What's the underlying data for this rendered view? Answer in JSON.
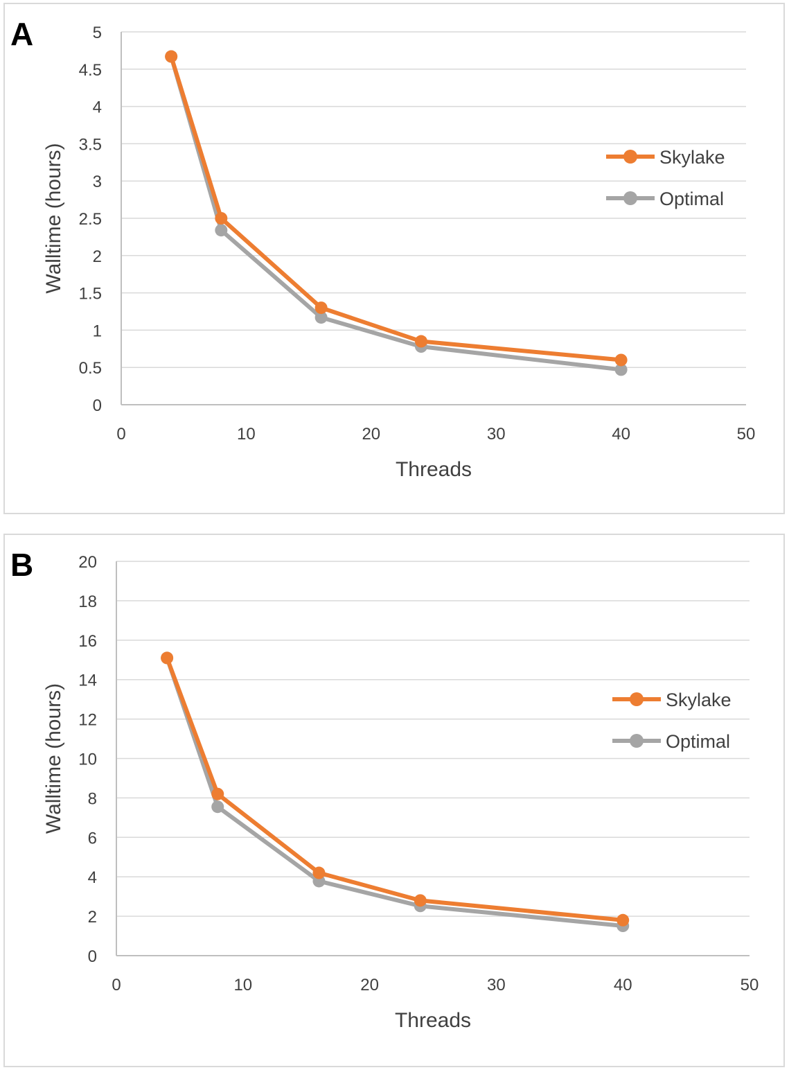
{
  "chart_data": [
    {
      "panel_label": "A",
      "type": "line",
      "xlabel": "Threads",
      "ylabel": "Walltime (hours)",
      "xlim": [
        0,
        50
      ],
      "ylim": [
        0,
        5
      ],
      "xticks": [
        0,
        10,
        20,
        30,
        40,
        50
      ],
      "yticks": [
        0,
        0.5,
        1,
        1.5,
        2,
        2.5,
        3,
        3.5,
        4,
        4.5,
        5
      ],
      "ytick_labels": [
        "0",
        "0.5",
        "1",
        "1.5",
        "2",
        "2.5",
        "3",
        "3.5",
        "4",
        "4.5",
        "5"
      ],
      "grid": true,
      "legend_position": "right",
      "series": [
        {
          "name": "Skylake",
          "color": "#ed7d31",
          "x": [
            4,
            8,
            16,
            24,
            40
          ],
          "y": [
            4.67,
            2.5,
            1.3,
            0.85,
            0.6
          ]
        },
        {
          "name": "Optimal",
          "color": "#a5a5a5",
          "x": [
            4,
            8,
            16,
            24,
            40
          ],
          "y": [
            4.67,
            2.34,
            1.17,
            0.78,
            0.47
          ]
        }
      ]
    },
    {
      "panel_label": "B",
      "type": "line",
      "xlabel": "Threads",
      "ylabel": "Walltime (hours)",
      "xlim": [
        0,
        50
      ],
      "ylim": [
        0,
        20
      ],
      "xticks": [
        0,
        10,
        20,
        30,
        40,
        50
      ],
      "yticks": [
        0,
        2,
        4,
        6,
        8,
        10,
        12,
        14,
        16,
        18,
        20
      ],
      "ytick_labels": [
        "0",
        "2",
        "4",
        "6",
        "8",
        "10",
        "12",
        "14",
        "16",
        "18",
        "20"
      ],
      "grid": true,
      "legend_position": "right",
      "series": [
        {
          "name": "Skylake",
          "color": "#ed7d31",
          "x": [
            4,
            8,
            16,
            24,
            40
          ],
          "y": [
            15.1,
            8.2,
            4.2,
            2.8,
            1.8
          ]
        },
        {
          "name": "Optimal",
          "color": "#a5a5a5",
          "x": [
            4,
            8,
            16,
            24,
            40
          ],
          "y": [
            15.1,
            7.55,
            3.78,
            2.52,
            1.51
          ]
        }
      ]
    }
  ]
}
